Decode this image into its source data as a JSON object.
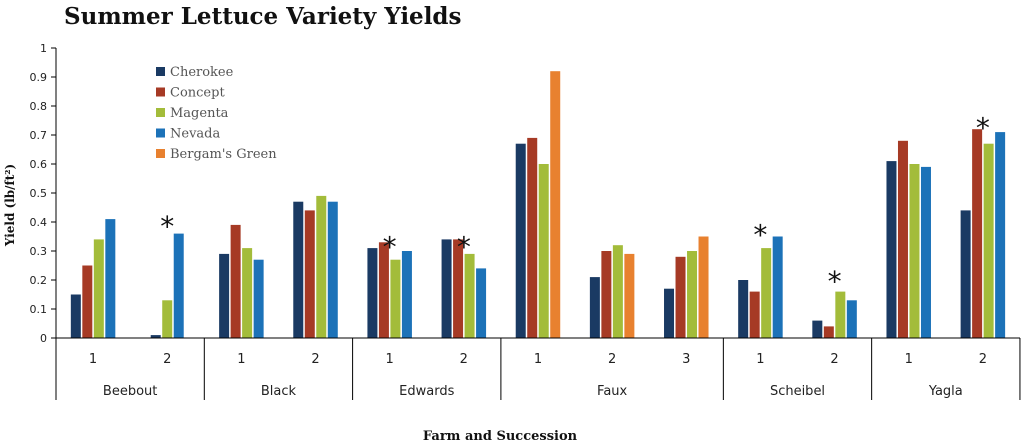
{
  "chart_data": {
    "type": "bar",
    "title": "Summer Lettuce Variety Yields",
    "xlabel": "Farm and Succession",
    "ylabel": "Yield (lb/ft²)",
    "ylim": [
      0,
      1
    ],
    "yticks": [
      "0",
      "0.1",
      "0.2",
      "0.3",
      "0.4",
      "0.5",
      "0.6",
      "0.7",
      "0.8",
      "0.9",
      "1"
    ],
    "legend_position": "top-left",
    "grid": false,
    "groups": [
      {
        "farm": "Beebout",
        "successions": [
          "1",
          "2"
        ]
      },
      {
        "farm": "Black",
        "successions": [
          "1",
          "2"
        ]
      },
      {
        "farm": "Edwards",
        "successions": [
          "1",
          "2"
        ]
      },
      {
        "farm": "Faux",
        "successions": [
          "1",
          "2",
          "3"
        ]
      },
      {
        "farm": "Scheibel",
        "successions": [
          "1",
          "2"
        ]
      },
      {
        "farm": "Yagla",
        "successions": [
          "1",
          "2"
        ]
      }
    ],
    "series": [
      {
        "name": "Cherokee",
        "color": "#1a3a63",
        "values": [
          0.15,
          0.01,
          0.29,
          0.47,
          0.31,
          0.34,
          0.67,
          0.21,
          0.17,
          0.2,
          0.06,
          0.61,
          0.44
        ]
      },
      {
        "name": "Concept",
        "color": "#a63a25",
        "values": [
          0.25,
          null,
          0.39,
          0.44,
          0.33,
          0.34,
          0.69,
          0.3,
          0.28,
          0.16,
          0.04,
          0.68,
          0.72
        ]
      },
      {
        "name": "Magenta",
        "color": "#a3bc3a",
        "values": [
          0.34,
          0.13,
          0.31,
          0.49,
          0.27,
          0.29,
          0.6,
          0.32,
          0.3,
          0.31,
          0.16,
          0.6,
          0.67
        ]
      },
      {
        "name": "Nevada",
        "color": "#1c72b8",
        "values": [
          0.41,
          0.36,
          0.27,
          0.47,
          0.3,
          0.24,
          null,
          null,
          null,
          0.35,
          0.13,
          0.59,
          0.71
        ]
      },
      {
        "name": "Bergam's Green",
        "color": "#e8812f",
        "values": [
          null,
          null,
          null,
          null,
          null,
          null,
          0.92,
          0.29,
          0.35,
          null,
          null,
          null,
          null
        ]
      }
    ],
    "annotations": [
      {
        "text": "*",
        "cluster": 1,
        "at_value": 0.4
      },
      {
        "text": "*",
        "cluster": 4,
        "at_value": 0.33
      },
      {
        "text": "*",
        "cluster": 5,
        "at_value": 0.33
      },
      {
        "text": "*",
        "cluster": 9,
        "at_value": 0.37
      },
      {
        "text": "*",
        "cluster": 10,
        "at_value": 0.21
      },
      {
        "text": "*",
        "cluster": 12,
        "at_value": 0.74
      }
    ]
  }
}
